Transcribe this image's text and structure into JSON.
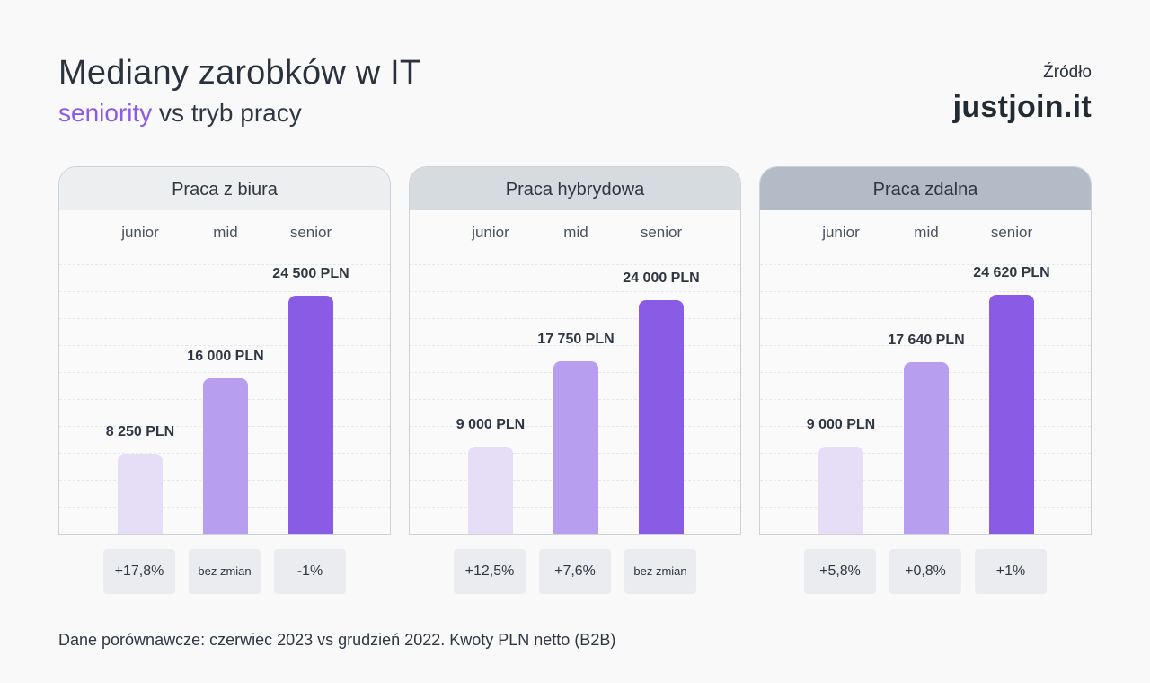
{
  "header": {
    "title": "Mediany zarobków w IT",
    "subtitle_accent": "seniority",
    "subtitle_rest": " vs tryb pracy",
    "source_label": "Źródło",
    "source_brand": "justjoin.it"
  },
  "footnote": "Dane porównawcze: czerwiec 2023 vs grudzień 2022. Kwoty PLN netto (B2B)",
  "colors": {
    "junior": "#e6ddf6",
    "mid": "#b89eef",
    "senior": "#8a5ce6",
    "head_office": "#edeef0",
    "head_hybrid": "#d6dbe0",
    "head_remote": "#b3bcc6",
    "accent": "#8a5ce6"
  },
  "chart_data": [
    {
      "type": "bar",
      "title": "Praca z biura",
      "categories": [
        "junior",
        "mid",
        "senior"
      ],
      "values": [
        8250,
        16000,
        24500
      ],
      "value_labels": [
        "8 250 PLN",
        "16 000 PLN",
        "24 500 PLN"
      ],
      "changes": [
        "+17,8%",
        "bez zmian",
        "-1%"
      ],
      "ylim": [
        0,
        30000
      ]
    },
    {
      "type": "bar",
      "title": "Praca hybrydowa",
      "categories": [
        "junior",
        "mid",
        "senior"
      ],
      "values": [
        9000,
        17750,
        24000
      ],
      "value_labels": [
        "9 000 PLN",
        "17 750 PLN",
        "24 000 PLN"
      ],
      "changes": [
        "+12,5%",
        "+7,6%",
        "bez zmian"
      ],
      "ylim": [
        0,
        30000
      ]
    },
    {
      "type": "bar",
      "title": "Praca zdalna",
      "categories": [
        "junior",
        "mid",
        "senior"
      ],
      "values": [
        9000,
        17640,
        24620
      ],
      "value_labels": [
        "9 000 PLN",
        "17 640 PLN",
        "24 620 PLN"
      ],
      "changes": [
        "+5,8%",
        "+0,8%",
        "+1%"
      ],
      "ylim": [
        0,
        30000
      ]
    }
  ]
}
